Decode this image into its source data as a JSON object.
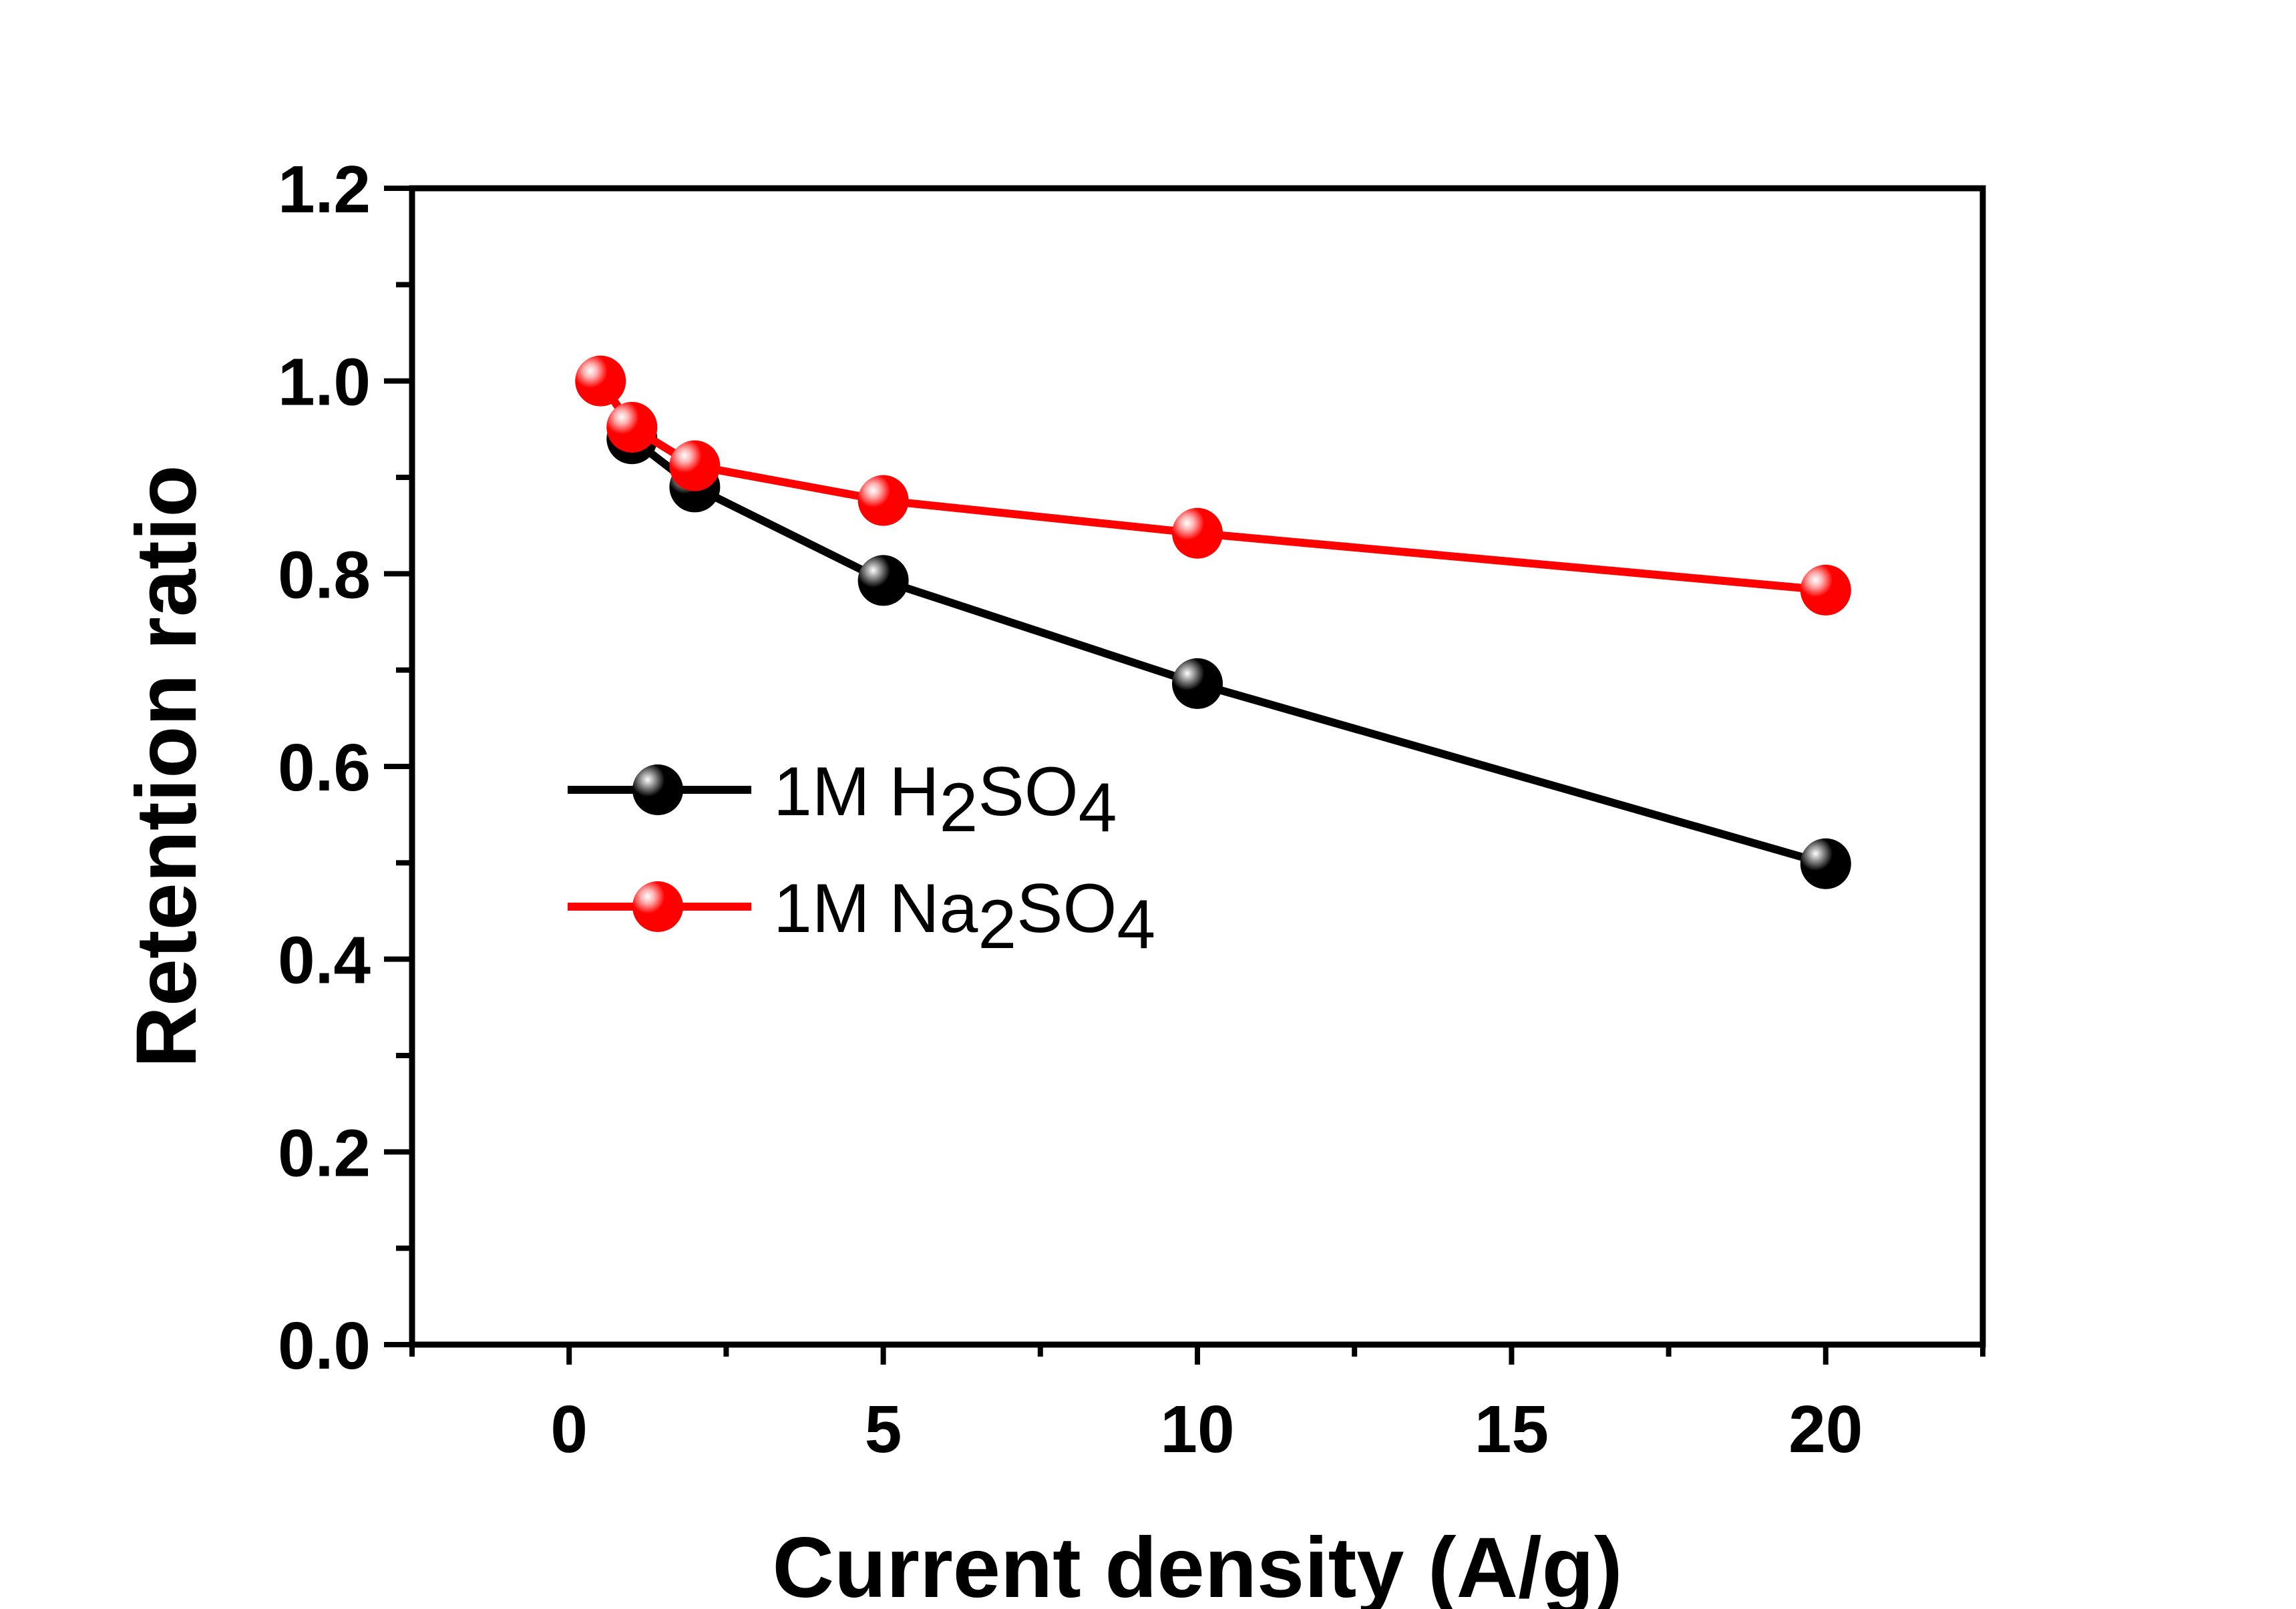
{
  "chart_data": {
    "type": "line",
    "title": "",
    "xlabel": "Current density (A/g)",
    "ylabel": "Retention ratio",
    "xlim": [
      -2.5,
      22.5
    ],
    "ylim": [
      0.0,
      1.2
    ],
    "xticks": [
      0,
      5,
      10,
      15,
      20
    ],
    "xtick_labels": [
      "0",
      "5",
      "10",
      "15",
      "20"
    ],
    "yticks": [
      0.0,
      0.2,
      0.4,
      0.6,
      0.8,
      1.0,
      1.2
    ],
    "ytick_labels": [
      "0.0",
      "0.2",
      "0.4",
      "0.6",
      "0.8",
      "1.0",
      "1.2"
    ],
    "grid": false,
    "legend_position": "center-left",
    "series": [
      {
        "name": "1M H2SO4",
        "legend_parts": {
          "prefix": "1M H",
          "sub1": "2",
          "mid": "SO",
          "sub2": "4"
        },
        "color": "#000000",
        "highlight": "#9a9a9a",
        "x": [
          1,
          2,
          5,
          10,
          20
        ],
        "y": [
          0.94,
          0.89,
          0.793,
          0.686,
          0.499
        ]
      },
      {
        "name": "1M Na2SO4",
        "legend_parts": {
          "prefix": "1M Na",
          "sub1": "2",
          "mid": "SO",
          "sub2": "4"
        },
        "color": "#ff0000",
        "highlight": "#ffb0b0",
        "x": [
          0.5,
          1,
          2,
          5,
          10,
          20
        ],
        "y": [
          1.0,
          0.952,
          0.912,
          0.876,
          0.842,
          0.783
        ]
      }
    ]
  }
}
